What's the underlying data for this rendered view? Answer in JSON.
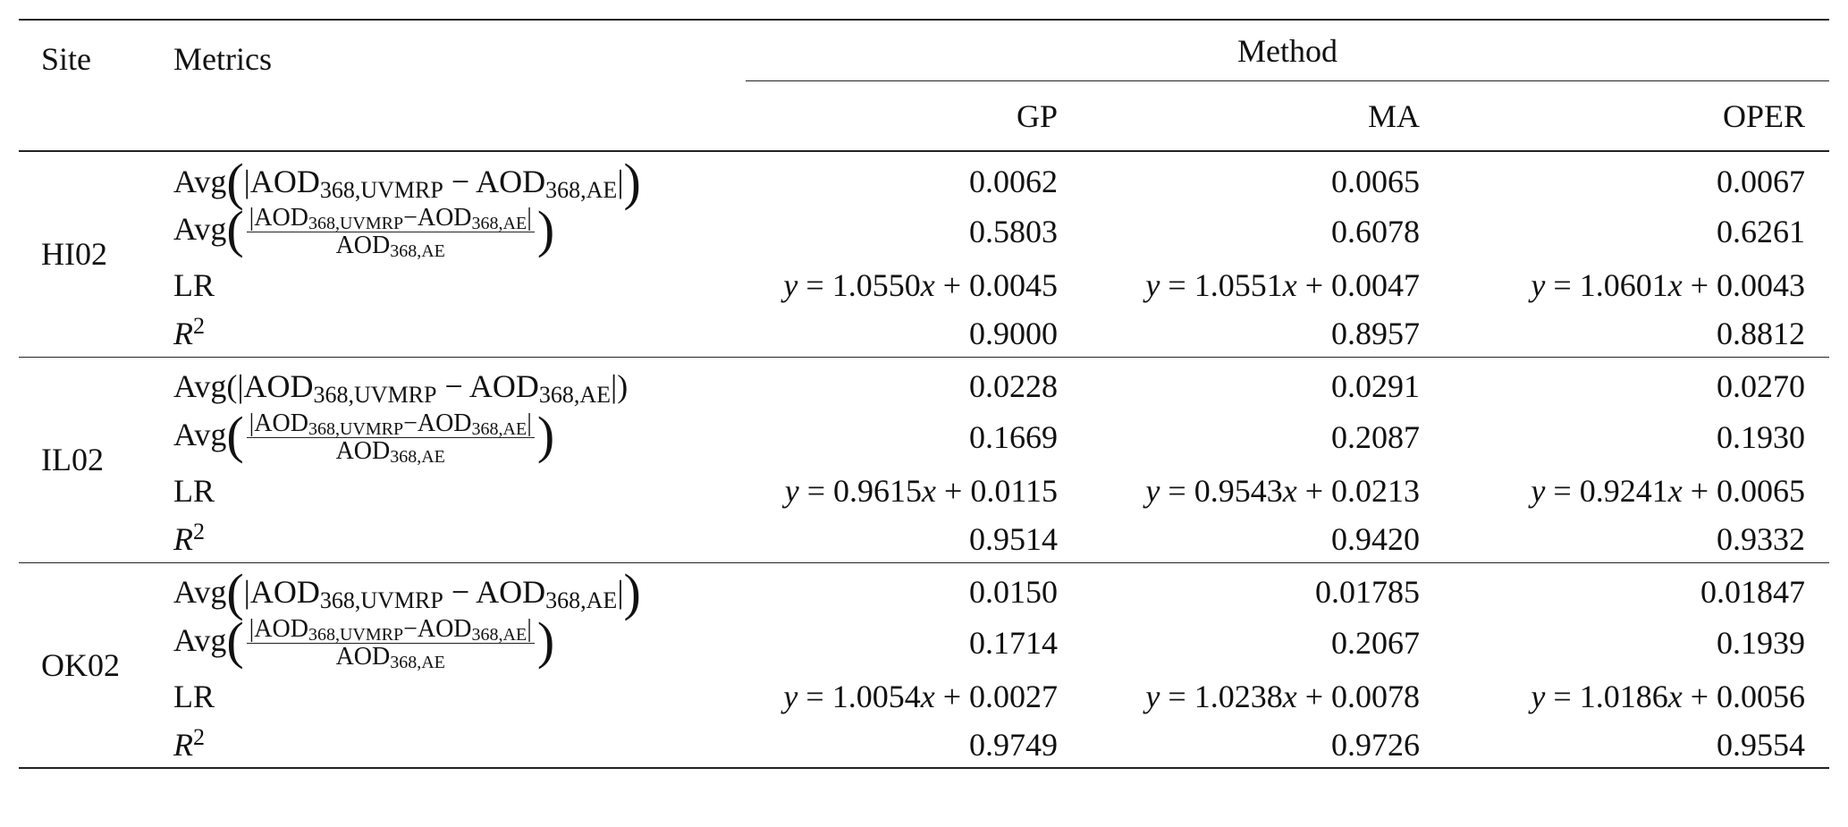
{
  "header": {
    "site": "Site",
    "metrics": "Metrics",
    "method": "Method",
    "methods": [
      "GP",
      "MA",
      "OPER"
    ]
  },
  "sites": [
    {
      "site": "HI02",
      "rows": [
        {
          "metric": [
            {
              "text": "Avg"
            },
            {
              "big": "("
            },
            {
              "text": "|AOD"
            },
            {
              "sub": "368,UVMRP"
            },
            {
              "text": " − AOD"
            },
            {
              "sub": "368,AE"
            },
            {
              "text": "|"
            },
            {
              "big": ")"
            }
          ],
          "values": [
            "0.0062",
            "0.0065",
            "0.0067"
          ]
        },
        {
          "metric": [
            {
              "text": "Avg"
            },
            {
              "big": "("
            },
            {
              "frac": {
                "num": [
                  {
                    "text": "|AOD"
                  },
                  {
                    "sub": "368,UVMRP"
                  },
                  {
                    "text": "−AOD"
                  },
                  {
                    "sub": "368,AE"
                  },
                  {
                    "text": "|"
                  }
                ],
                "den": [
                  {
                    "text": "AOD"
                  },
                  {
                    "sub": "368,AE"
                  }
                ]
              }
            },
            {
              "big": ")"
            }
          ],
          "values": [
            "0.5803",
            "0.6078",
            "0.6261"
          ]
        },
        {
          "metric": [
            {
              "text": "LR"
            }
          ],
          "values": [
            "y = 1.0550x + 0.0045",
            "y = 1.0551x + 0.0047",
            "y = 1.0601x + 0.0043"
          ]
        },
        {
          "metric": [
            {
              "italic": "R"
            },
            {
              "sup": "2"
            }
          ],
          "values": [
            "0.9000",
            "0.8957",
            "0.8812"
          ]
        }
      ]
    },
    {
      "site": "IL02",
      "rows": [
        {
          "metric": [
            {
              "text": "Avg(|AOD"
            },
            {
              "sub": "368,UVMRP"
            },
            {
              "text": " − AOD"
            },
            {
              "sub": "368,AE"
            },
            {
              "text": "|)"
            }
          ],
          "values": [
            "0.0228",
            "0.0291",
            "0.0270"
          ]
        },
        {
          "metric": [
            {
              "text": "Avg"
            },
            {
              "big": "("
            },
            {
              "frac": {
                "num": [
                  {
                    "text": "|AOD"
                  },
                  {
                    "sub": "368,UVMRP"
                  },
                  {
                    "text": "−AOD"
                  },
                  {
                    "sub": "368,AE"
                  },
                  {
                    "text": "|"
                  }
                ],
                "den": [
                  {
                    "text": "AOD"
                  },
                  {
                    "sub": "368,AE"
                  }
                ]
              }
            },
            {
              "big": ")"
            }
          ],
          "values": [
            "0.1669",
            "0.2087",
            "0.1930"
          ]
        },
        {
          "metric": [
            {
              "text": "LR"
            }
          ],
          "values": [
            "y = 0.9615x + 0.0115",
            "y = 0.9543x + 0.0213",
            "y = 0.9241x + 0.0065"
          ]
        },
        {
          "metric": [
            {
              "italic": "R"
            },
            {
              "sup": "2"
            }
          ],
          "values": [
            "0.9514",
            "0.9420",
            "0.9332"
          ]
        }
      ]
    },
    {
      "site": "OK02",
      "rows": [
        {
          "metric": [
            {
              "text": "Avg"
            },
            {
              "big": "("
            },
            {
              "text": "|AOD"
            },
            {
              "sub": "368,UVMRP"
            },
            {
              "text": " − AOD"
            },
            {
              "sub": "368,AE"
            },
            {
              "text": "|"
            },
            {
              "big": ")"
            }
          ],
          "values": [
            "0.0150",
            "0.01785",
            "0.01847"
          ]
        },
        {
          "metric": [
            {
              "text": "Avg"
            },
            {
              "big": "("
            },
            {
              "frac": {
                "num": [
                  {
                    "text": "|AOD"
                  },
                  {
                    "sub": "368,UVMRP"
                  },
                  {
                    "text": "−AOD"
                  },
                  {
                    "sub": "368,AE"
                  },
                  {
                    "text": "|"
                  }
                ],
                "den": [
                  {
                    "text": "AOD"
                  },
                  {
                    "sub": "368,AE"
                  }
                ]
              }
            },
            {
              "big": ")"
            }
          ],
          "values": [
            "0.1714",
            "0.2067",
            "0.1939"
          ]
        },
        {
          "metric": [
            {
              "text": "LR"
            }
          ],
          "values": [
            "y = 1.0054x + 0.0027",
            "y = 1.0238x + 0.0078",
            "y = 1.0186x + 0.0056"
          ]
        },
        {
          "metric": [
            {
              "italic": "R"
            },
            {
              "sup": "2"
            }
          ],
          "values": [
            "0.9749",
            "0.9726",
            "0.9554"
          ]
        }
      ]
    }
  ]
}
